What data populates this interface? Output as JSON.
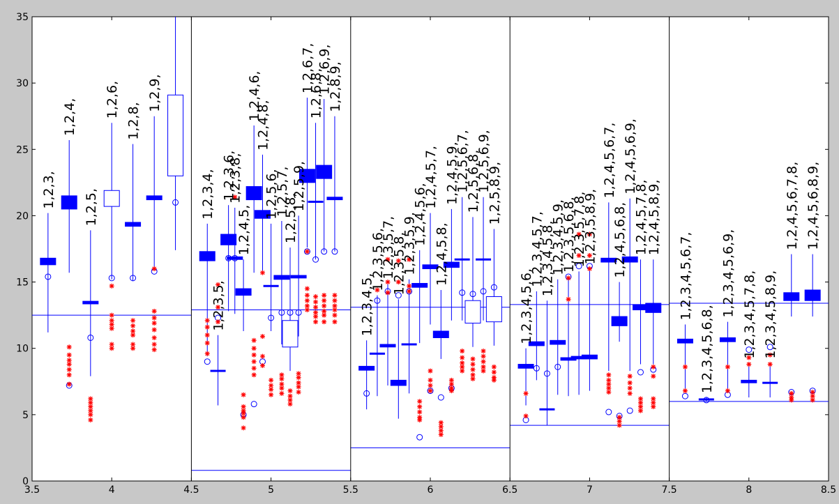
{
  "chart_data": {
    "type": "box",
    "title": "",
    "xlabel": "",
    "ylabel": "",
    "xlim": [
      3.5,
      8.5
    ],
    "ylim": [
      0,
      35
    ],
    "x_ticks": [
      "3.5",
      "4",
      "4.5",
      "5",
      "5.5",
      "6",
      "6.5",
      "7",
      "7.5",
      "8",
      "8.5"
    ],
    "y_ticks": [
      "0",
      "5",
      "10",
      "15",
      "20",
      "25",
      "30",
      "35"
    ],
    "colors": {
      "background": "#c8c8c8",
      "plot": "#ffffff",
      "box": "#0000ff",
      "outlier": "#ff0000",
      "axes": "#000000"
    },
    "panel_dividers": [
      4.5,
      5.5,
      6.5,
      7.5
    ],
    "reference_lines": [
      {
        "x0": 3.5,
        "x1": 4.5,
        "y": 12.5
      },
      {
        "x0": 4.5,
        "x1": 5.5,
        "y": 12.9
      },
      {
        "x0": 4.5,
        "x1": 5.5,
        "y": 0.8
      },
      {
        "x0": 5.5,
        "x1": 6.5,
        "y": 13.1
      },
      {
        "x0": 5.5,
        "x1": 6.5,
        "y": 2.5
      },
      {
        "x0": 6.5,
        "x1": 7.5,
        "y": 13.3
      },
      {
        "x0": 6.5,
        "x1": 7.5,
        "y": 4.2
      },
      {
        "x0": 7.5,
        "x1": 8.5,
        "y": 13.4
      },
      {
        "x0": 7.5,
        "x1": 8.5,
        "y": 6.0
      }
    ],
    "boxes": [
      {
        "x": 3.6,
        "label": "1,2,3,",
        "q1": 16.3,
        "q3": 16.8,
        "lo": 11.2,
        "hi": 20.2,
        "circle": 15.4,
        "outliers": []
      },
      {
        "x": 3.733,
        "label": "1,2,4,",
        "q1": 20.5,
        "q3": 21.5,
        "lo": 15.7,
        "hi": 25.7,
        "circle": 7.2,
        "outliers": [
          10.1,
          9.5,
          9.1,
          8.8,
          8.4,
          8.0,
          7.3
        ]
      },
      {
        "x": 3.867,
        "label": "1,2,5,",
        "q1": 13.35,
        "q3": 13.55,
        "lo": 7.9,
        "hi": 18.9,
        "circle": 10.8,
        "outliers": [
          6.2,
          5.9,
          5.6,
          5.3,
          5.0,
          4.6
        ]
      },
      {
        "x": 4.0,
        "label": "1,2,6,",
        "q1": 20.7,
        "q3": 21.9,
        "lo": 15.2,
        "hi": 27.0,
        "circle": 15.3,
        "outliers": [
          14.7,
          12.5,
          12.1,
          11.8,
          11.5,
          10.3,
          10.0
        ]
      },
      {
        "x": 4.133,
        "label": "1,2,8,",
        "q1": 19.2,
        "q3": 19.5,
        "lo": 15.1,
        "hi": 25.4,
        "circle": 15.3,
        "outliers": [
          12.1,
          11.7,
          11.3,
          11.0,
          10.3,
          10.0
        ]
      },
      {
        "x": 4.267,
        "label": "1,2,9,",
        "q1": 21.2,
        "q3": 21.5,
        "lo": 16.0,
        "hi": 27.5,
        "circle": 15.8,
        "outliers": [
          16.0,
          12.8,
          12.3,
          11.9,
          11.4,
          10.8,
          10.3,
          9.9
        ]
      },
      {
        "x": 4.4,
        "label": "",
        "q1": 23.0,
        "q3": 29.1,
        "lo": 17.4,
        "hi": 35.0,
        "circle": 21.0,
        "outliers": []
      },
      {
        "x": 4.6,
        "label": "1,2,3,4,",
        "q1": 16.6,
        "q3": 17.3,
        "lo": 9.4,
        "hi": 19.4,
        "circle": 9.0,
        "outliers": [
          12.1,
          11.6,
          11.0,
          10.4,
          9.6
        ]
      },
      {
        "x": 4.667,
        "label": "1,2,3,5,",
        "q1": 8.3,
        "q3": 8.3,
        "lo": 5.7,
        "hi": 11.0,
        "circle": 12.3,
        "outliers": [
          14.8,
          13.1,
          12.0
        ]
      },
      {
        "x": 4.733,
        "label": "1,2,3,6,",
        "q1": 17.8,
        "q3": 18.6,
        "lo": 12.8,
        "hi": 20.8,
        "circle": 16.8,
        "outliers": []
      },
      {
        "x": 4.773,
        "label": "1,2,3,8,",
        "q1": 16.7,
        "q3": 16.9,
        "lo": 12.6,
        "hi": 20.6,
        "circle": 16.8,
        "outliers": [
          21.4
        ]
      },
      {
        "x": 4.827,
        "label": "1,2,4,5,",
        "q1": 14.0,
        "q3": 14.5,
        "lo": 11.3,
        "hi": 16.7,
        "circle": 5.0,
        "outliers": [
          6.5,
          5.6,
          5.3,
          5.1,
          4.8,
          4.0
        ]
      },
      {
        "x": 4.893,
        "label": "1,2,4,6,",
        "q1": 21.2,
        "q3": 22.2,
        "lo": 15.7,
        "hi": 26.8,
        "circle": 5.8,
        "outliers": [
          10.6,
          10.0,
          9.5,
          9.0,
          8.5,
          8.0
        ]
      },
      {
        "x": 4.947,
        "label": "1,2,4,8,",
        "q1": 19.8,
        "q3": 20.4,
        "lo": 15.7,
        "hi": 24.6,
        "circle": 9.0,
        "outliers": [
          15.7,
          10.9,
          9.4,
          8.7
        ]
      },
      {
        "x": 5.0,
        "label": "1,2,5,6,",
        "q1": 14.7,
        "q3": 14.7,
        "lo": 11.3,
        "hi": 19.4,
        "circle": 12.3,
        "outliers": [
          7.6,
          7.2,
          6.9,
          6.5
        ]
      },
      {
        "x": 5.067,
        "label": "1,2,5,7,",
        "q1": 15.2,
        "q3": 15.5,
        "lo": 10.3,
        "hi": 19.6,
        "circle": 12.7,
        "outliers": [
          8.0,
          7.7,
          7.3,
          7.0,
          6.6
        ]
      },
      {
        "x": 5.12,
        "label": "1,2,5,8,",
        "q1": 10.1,
        "q3": 12.1,
        "lo": 8.3,
        "hi": 17.6,
        "circle": 12.7,
        "outliers": [
          6.8,
          6.4,
          6.1,
          5.8
        ]
      },
      {
        "x": 5.173,
        "label": "1,2,5,9,",
        "q1": 15.3,
        "q3": 15.5,
        "lo": 10.9,
        "hi": 20.0,
        "circle": 12.7,
        "outliers": [
          8.1,
          7.8,
          7.4,
          7.1,
          6.7
        ]
      },
      {
        "x": 5.227,
        "label": "1,2,6,7,",
        "q1": 22.5,
        "q3": 23.5,
        "lo": 17.6,
        "hi": 28.9,
        "circle": 17.3,
        "outliers": [
          17.3,
          14.5,
          14.0,
          13.6,
          13.2,
          12.9
        ]
      },
      {
        "x": 5.28,
        "label": "1,2,6,8,",
        "q1": 21.05,
        "q3": 21.05,
        "lo": 16.7,
        "hi": 27.0,
        "circle": 16.7,
        "outliers": [
          13.9,
          13.5,
          13.1,
          12.7,
          12.4,
          12.0
        ]
      },
      {
        "x": 5.333,
        "label": "1,2,6,9,",
        "q1": 22.8,
        "q3": 23.8,
        "lo": 17.3,
        "hi": 28.8,
        "circle": 17.3,
        "outliers": [
          14.0,
          13.6,
          13.2,
          12.8,
          12.5,
          12.0
        ]
      },
      {
        "x": 5.4,
        "label": "1,2,8,9,",
        "q1": 21.2,
        "q3": 21.4,
        "lo": 17.3,
        "hi": 27.5,
        "circle": 17.3,
        "outliers": [
          14.0,
          13.6,
          13.2,
          12.9,
          12.5,
          12.0
        ]
      },
      {
        "x": 5.6,
        "label": "1,2,3,4,5,",
        "q1": 8.35,
        "q3": 8.65,
        "lo": 5.4,
        "hi": 10.6,
        "circle": 6.6,
        "outliers": []
      },
      {
        "x": 5.667,
        "label": "1,2,3,5,6,",
        "q1": 9.6,
        "q3": 9.6,
        "lo": 6.4,
        "hi": 14.0,
        "circle": 13.6,
        "outliers": [
          14.4
        ]
      },
      {
        "x": 5.733,
        "label": "1,2,3,5,7,",
        "q1": 10.1,
        "q3": 10.3,
        "lo": 7.2,
        "hi": 14.9,
        "circle": 14.3,
        "outliers": [
          16.7,
          15.0,
          14.2
        ]
      },
      {
        "x": 5.8,
        "label": "1,2,3,5,8,",
        "q1": 7.2,
        "q3": 7.6,
        "lo": 4.7,
        "hi": 13.7,
        "circle": 14.0,
        "outliers": [
          16.6,
          15.0
        ]
      },
      {
        "x": 5.867,
        "label": "1,2,3,5,9,",
        "q1": 10.3,
        "q3": 10.3,
        "lo": 6.6,
        "hi": 15.2,
        "circle": 14.3,
        "outliers": [
          16.7,
          14.7,
          14.3
        ]
      },
      {
        "x": 5.933,
        "label": "1,2,4,5,6,",
        "q1": 14.6,
        "q3": 14.9,
        "lo": 10.4,
        "hi": 17.4,
        "circle": 3.3,
        "outliers": [
          6.0,
          5.6,
          5.2,
          4.8,
          4.6
        ]
      },
      {
        "x": 6.0,
        "label": "1,2,4,5,7,",
        "q1": 16.0,
        "q3": 16.3,
        "lo": 11.8,
        "hi": 20.2,
        "circle": 6.8,
        "outliers": [
          8.3,
          7.6,
          7.2,
          6.8
        ]
      },
      {
        "x": 6.067,
        "label": "1,2,4,5,8,",
        "q1": 10.8,
        "q3": 11.3,
        "lo": 9.2,
        "hi": 14.4,
        "circle": 6.3,
        "outliers": [
          4.4,
          4.1,
          3.8,
          3.5
        ]
      },
      {
        "x": 6.133,
        "label": "1,2,4,5,9,",
        "q1": 16.1,
        "q3": 16.5,
        "lo": 12.1,
        "hi": 20.5,
        "circle": 7.0,
        "outliers": [
          7.6,
          7.3,
          7.0,
          6.8
        ]
      },
      {
        "x": 6.2,
        "label": "1,2,5,6,7,",
        "q1": 16.7,
        "q3": 16.7,
        "lo": 12.1,
        "hi": 21.4,
        "circle": 14.2,
        "outliers": [
          9.8,
          9.3,
          8.9,
          8.6,
          8.3
        ]
      },
      {
        "x": 6.267,
        "label": "1,2,5,6,8,",
        "q1": 11.9,
        "q3": 13.6,
        "lo": 10.1,
        "hi": 19.9,
        "circle": 14.1,
        "outliers": [
          9.2,
          8.8,
          8.4,
          8.0,
          7.7
        ]
      },
      {
        "x": 6.333,
        "label": "1,2,5,6,9,",
        "q1": 16.7,
        "q3": 16.7,
        "lo": 12.1,
        "hi": 21.4,
        "circle": 14.3,
        "outliers": [
          9.8,
          9.4,
          9.0,
          8.6,
          8.3
        ]
      },
      {
        "x": 6.4,
        "label": "1,2,5,8,9,",
        "q1": 12.0,
        "q3": 13.9,
        "lo": 10.2,
        "hi": 19.0,
        "circle": 14.6,
        "outliers": [
          8.6,
          8.2,
          7.8,
          7.6
        ]
      },
      {
        "x": 6.6,
        "label": "1,2,3,4,5,6,",
        "q1": 8.5,
        "q3": 8.8,
        "lo": 5.7,
        "hi": 10.0,
        "circle": 4.6,
        "outliers": [
          6.6,
          4.9
        ]
      },
      {
        "x": 6.667,
        "label": "1,2,3,4,5,7,",
        "q1": 10.2,
        "q3": 10.5,
        "lo": 7.6,
        "hi": 14.3,
        "circle": 8.5,
        "outliers": []
      },
      {
        "x": 6.733,
        "label": "1,2,3,4,5,8,",
        "q1": 5.4,
        "q3": 5.4,
        "lo": 4.2,
        "hi": 13.6,
        "circle": 8.1,
        "outliers": []
      },
      {
        "x": 6.8,
        "label": "1,2,3,4,5,9,",
        "q1": 10.3,
        "q3": 10.6,
        "lo": 6.5,
        "hi": 15.2,
        "circle": 8.6,
        "outliers": []
      },
      {
        "x": 6.867,
        "label": "1,2,3,5,6,8,",
        "q1": 9.1,
        "q3": 9.3,
        "lo": 6.4,
        "hi": 15.4,
        "circle": 15.4,
        "outliers": [
          15.3,
          13.7
        ]
      },
      {
        "x": 6.933,
        "label": "1,2,3,5,7,8,",
        "q1": 9.2,
        "q3": 9.4,
        "lo": 6.5,
        "hi": 15.8,
        "circle": 16.2,
        "outliers": [
          18.6,
          17.0
        ]
      },
      {
        "x": 7.0,
        "label": "1,2,3,5,8,9,",
        "q1": 9.2,
        "q3": 9.5,
        "lo": 6.8,
        "hi": 16.0,
        "circle": 16.2,
        "outliers": [
          18.6,
          17.0,
          16.0
        ]
      },
      {
        "x": 7.12,
        "label": "1,2,4,5,6,7,",
        "q1": 16.5,
        "q3": 16.8,
        "lo": 8.3,
        "hi": 21.0,
        "circle": 5.2,
        "outliers": [
          8.0,
          7.6,
          7.3,
          7.0,
          6.7
        ]
      },
      {
        "x": 7.187,
        "label": "1,2,4,5,6,8,",
        "q1": 11.7,
        "q3": 12.4,
        "lo": 10.5,
        "hi": 15.0,
        "circle": 4.9,
        "outliers": [
          4.8,
          4.5,
          4.2
        ]
      },
      {
        "x": 7.253,
        "label": "1,2,4,5,6,9,",
        "q1": 16.5,
        "q3": 16.9,
        "lo": 8.3,
        "hi": 21.3,
        "circle": 5.3,
        "outliers": [
          7.9,
          7.4,
          7.0,
          6.6
        ]
      },
      {
        "x": 7.32,
        "label": "1,2,4,5,7,8,",
        "q1": 12.9,
        "q3": 13.3,
        "lo": 8.8,
        "hi": 16.7,
        "circle": 8.2,
        "outliers": [
          6.2,
          5.9,
          5.6,
          5.3
        ]
      },
      {
        "x": 7.4,
        "label": "1,2,4,5,8,9,",
        "q1": 12.7,
        "q3": 13.4,
        "lo": 8.8,
        "hi": 16.7,
        "circle": 8.4,
        "outliers": [
          8.6,
          7.9,
          6.2,
          5.9,
          5.6
        ]
      },
      {
        "x": 7.6,
        "label": "1,2,3,4,5,6,7,",
        "q1": 10.4,
        "q3": 10.7,
        "lo": 6.7,
        "hi": 11.8,
        "circle": 6.4,
        "outliers": [
          8.6,
          6.8
        ]
      },
      {
        "x": 7.733,
        "label": "1,2,3,4,5,6,8,",
        "q1": 6.1,
        "q3": 6.2,
        "lo": 6.0,
        "hi": 6.3,
        "circle": 6.1,
        "outliers": []
      },
      {
        "x": 7.867,
        "label": "1,2,3,4,5,6,9,",
        "q1": 10.5,
        "q3": 10.8,
        "lo": 6.8,
        "hi": 12.0,
        "circle": 6.5,
        "outliers": [
          8.6,
          6.8
        ]
      },
      {
        "x": 8.0,
        "label": "1,2,3,4,5,7,8,",
        "q1": 7.4,
        "q3": 7.6,
        "lo": 6.3,
        "hi": 8.9,
        "circle": 9.9,
        "outliers": [
          9.3,
          8.8
        ]
      },
      {
        "x": 8.133,
        "label": "1,2,3,4,5,8,9,",
        "q1": 7.4,
        "q3": 7.4,
        "lo": 6.3,
        "hi": 8.9,
        "circle": 10.1,
        "outliers": [
          9.5,
          8.8
        ]
      },
      {
        "x": 8.267,
        "label": "1,2,4,5,6,7,8,",
        "q1": 13.6,
        "q3": 14.2,
        "lo": 12.4,
        "hi": 17.1,
        "circle": 6.7,
        "outliers": [
          6.6,
          6.3,
          6.1
        ]
      },
      {
        "x": 8.4,
        "label": "1,2,4,5,6,8,9,",
        "q1": 13.6,
        "q3": 14.4,
        "lo": 12.4,
        "hi": 17.1,
        "circle": 6.8,
        "outliers": [
          6.7,
          6.4,
          6.1
        ]
      }
    ]
  }
}
